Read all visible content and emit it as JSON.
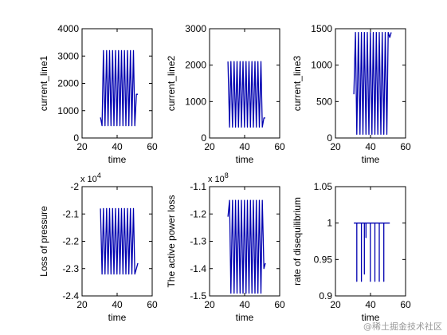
{
  "watermark": "@稀土掘金技术社区",
  "chart_data": [
    {
      "type": "line",
      "xlabel": "time",
      "ylabel": "current_line1",
      "xlim": [
        20,
        60
      ],
      "ylim": [
        0,
        4000
      ],
      "xticks": [
        "20",
        "40",
        "60"
      ],
      "yticks": [
        "0",
        "1000",
        "2000",
        "3000",
        "4000"
      ],
      "exponent": "",
      "color": "#0000b0",
      "series": [
        {
          "x": [
            30.5,
            31.4,
            32.2,
            33.1,
            34.0,
            34.8,
            35.7,
            36.5,
            37.4,
            38.2,
            39.1,
            39.9,
            40.8,
            41.6,
            42.5,
            43.3,
            44.2,
            45.0,
            45.9,
            46.7,
            47.6,
            48.4,
            49.3,
            50.1,
            51.0,
            51.8
          ],
          "y": [
            750,
            450,
            3200,
            450,
            3200,
            450,
            3200,
            450,
            3200,
            450,
            3200,
            450,
            3200,
            450,
            3200,
            450,
            3200,
            450,
            3200,
            450,
            3200,
            450,
            3200,
            450,
            1600,
            1600
          ]
        }
      ]
    },
    {
      "type": "line",
      "xlabel": "time",
      "ylabel": "current_line2",
      "xlim": [
        20,
        60
      ],
      "ylim": [
        0,
        3000
      ],
      "xticks": [
        "20",
        "40",
        "60"
      ],
      "yticks": [
        "0",
        "1000",
        "2000",
        "3000"
      ],
      "exponent": "",
      "color": "#0000b0",
      "series": [
        {
          "x": [
            30.5,
            31.4,
            32.2,
            33.1,
            34.0,
            34.8,
            35.7,
            36.5,
            37.4,
            38.2,
            39.1,
            39.9,
            40.8,
            41.6,
            42.5,
            43.3,
            44.2,
            45.0,
            45.9,
            46.7,
            47.6,
            48.4,
            49.3,
            50.1,
            51.0,
            51.8
          ],
          "y": [
            2100,
            300,
            2100,
            300,
            2100,
            300,
            2100,
            300,
            2100,
            300,
            2100,
            300,
            2100,
            300,
            2100,
            300,
            2100,
            300,
            2100,
            300,
            2100,
            300,
            2100,
            300,
            550,
            550
          ]
        }
      ]
    },
    {
      "type": "line",
      "xlabel": "time",
      "ylabel": "current_line3",
      "xlim": [
        20,
        60
      ],
      "ylim": [
        0,
        1500
      ],
      "xticks": [
        "20",
        "40",
        "60"
      ],
      "yticks": [
        "0",
        "500",
        "1000",
        "1500"
      ],
      "exponent": "",
      "color": "#0000b0",
      "series": [
        {
          "x": [
            30.5,
            31.4,
            32.2,
            33.1,
            34.0,
            34.8,
            35.7,
            36.5,
            37.4,
            38.2,
            39.1,
            39.9,
            40.8,
            41.6,
            42.5,
            43.3,
            44.2,
            45.0,
            45.9,
            46.7,
            47.6,
            48.4,
            49.3,
            50.1,
            51.0,
            51.8
          ],
          "y": [
            600,
            1450,
            50,
            1450,
            50,
            1450,
            50,
            1450,
            50,
            1450,
            50,
            1450,
            50,
            1450,
            50,
            1450,
            50,
            1450,
            50,
            1450,
            50,
            1450,
            50,
            1450,
            1380,
            1450
          ]
        }
      ]
    },
    {
      "type": "line",
      "xlabel": "time",
      "ylabel": "Loss of pressure",
      "xlim": [
        20,
        60
      ],
      "ylim": [
        -2.4,
        -2.0
      ],
      "xticks": [
        "20",
        "40",
        "60"
      ],
      "yticks": [
        "-2.4",
        "-2.3",
        "-2.2",
        "-2.1",
        "-2"
      ],
      "exponent": "x 10^4",
      "exponent_base": "x 10",
      "exponent_power": "4",
      "color": "#0000b0",
      "series": [
        {
          "x": [
            30.5,
            31.4,
            32.2,
            33.1,
            34.0,
            34.8,
            35.7,
            36.5,
            37.4,
            38.2,
            39.1,
            39.9,
            40.8,
            41.6,
            42.5,
            43.3,
            44.2,
            45.0,
            45.9,
            46.7,
            47.6,
            48.4,
            49.3,
            50.1,
            51.0,
            51.8
          ],
          "y": [
            -2.08,
            -2.32,
            -2.08,
            -2.32,
            -2.08,
            -2.32,
            -2.08,
            -2.32,
            -2.08,
            -2.32,
            -2.08,
            -2.32,
            -2.08,
            -2.32,
            -2.08,
            -2.32,
            -2.08,
            -2.32,
            -2.08,
            -2.32,
            -2.08,
            -2.32,
            -2.08,
            -2.32,
            -2.3,
            -2.28
          ]
        }
      ]
    },
    {
      "type": "line",
      "xlabel": "time",
      "ylabel": "The active power loss",
      "xlim": [
        20,
        60
      ],
      "ylim": [
        -1.5,
        -1.1
      ],
      "xticks": [
        "20",
        "40",
        "60"
      ],
      "yticks": [
        "-1.5",
        "-1.4",
        "-1.3",
        "-1.2",
        "-1.1"
      ],
      "exponent": "x 10^8",
      "exponent_base": "x 10",
      "exponent_power": "8",
      "color": "#0000b0",
      "series": [
        {
          "x": [
            30.5,
            31.4,
            32.2,
            33.1,
            34.0,
            34.8,
            35.7,
            36.5,
            37.4,
            38.2,
            39.1,
            39.9,
            40.8,
            41.6,
            42.5,
            43.3,
            44.2,
            45.0,
            45.9,
            46.7,
            47.6,
            48.4,
            49.3,
            50.1,
            51.0,
            51.8
          ],
          "y": [
            -1.21,
            -1.15,
            -1.49,
            -1.15,
            -1.49,
            -1.15,
            -1.49,
            -1.15,
            -1.49,
            -1.15,
            -1.49,
            -1.15,
            -1.49,
            -1.15,
            -1.49,
            -1.15,
            -1.49,
            -1.15,
            -1.49,
            -1.15,
            -1.49,
            -1.15,
            -1.49,
            -1.15,
            -1.4,
            -1.38
          ]
        }
      ]
    },
    {
      "type": "line",
      "xlabel": "time",
      "ylabel": "rate of disequilibrium",
      "xlim": [
        20,
        60
      ],
      "ylim": [
        0.9,
        1.05
      ],
      "xticks": [
        "20",
        "40",
        "60"
      ],
      "yticks": [
        "0.9",
        "0.95",
        "1",
        "1.05"
      ],
      "exponent": "",
      "color": "#0000b0",
      "series": [
        {
          "x": [
            30.5,
            32.2,
            32.2,
            32.2,
            34.8,
            34.8,
            34.8,
            36.5,
            36.5,
            36.5,
            37.4,
            37.4,
            37.4,
            39.9,
            39.9,
            39.9,
            42.5,
            42.5,
            42.5,
            45.0,
            45.0,
            45.0,
            47.6,
            47.6,
            47.6,
            51.0
          ],
          "y": [
            1.0,
            1.0,
            0.92,
            1.0,
            1.0,
            0.92,
            1.0,
            1.0,
            0.93,
            1.0,
            1.0,
            0.98,
            1.0,
            1.0,
            0.92,
            1.0,
            1.0,
            0.92,
            1.0,
            1.0,
            0.92,
            1.0,
            1.0,
            0.92,
            1.0,
            1.0
          ]
        }
      ]
    }
  ]
}
